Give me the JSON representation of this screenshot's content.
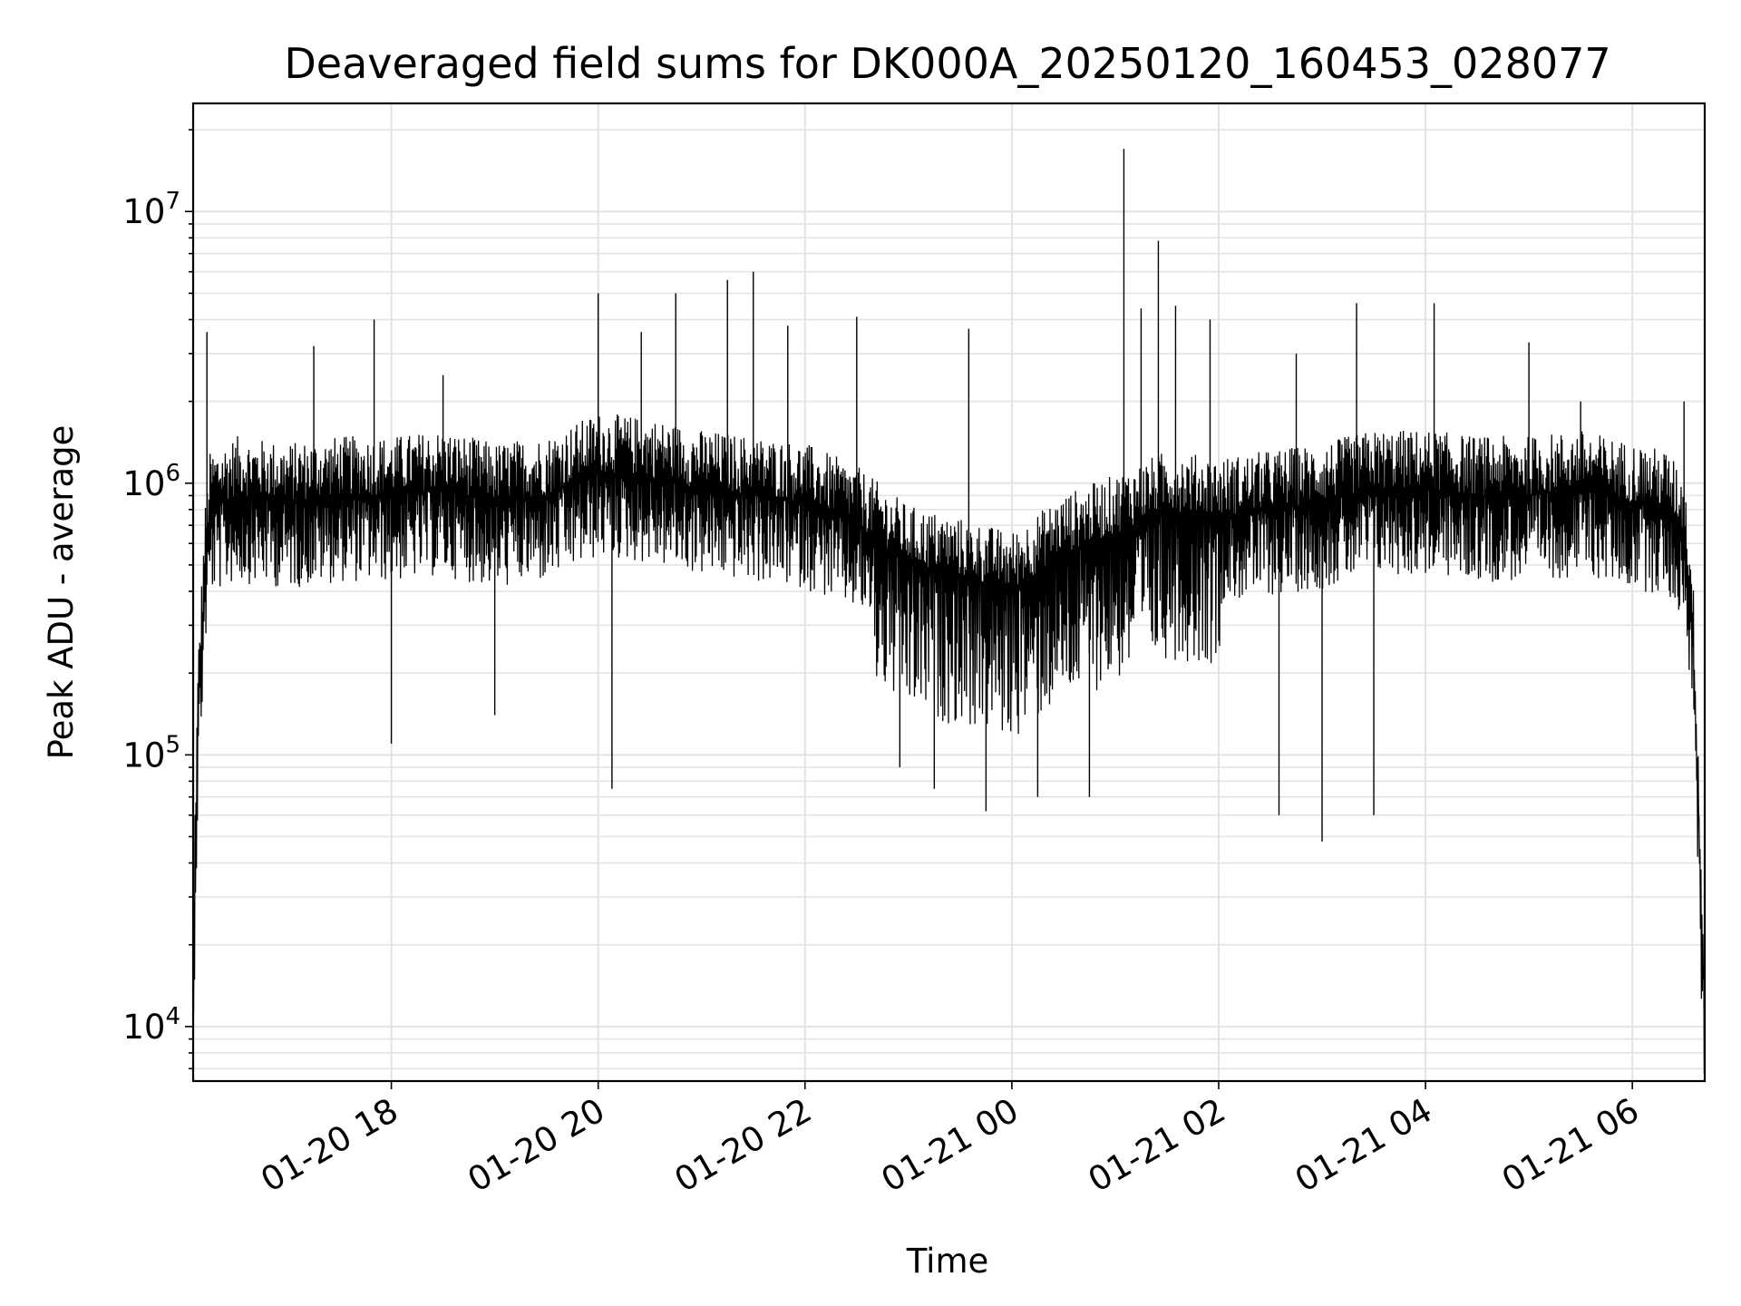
{
  "chart_data": {
    "type": "line",
    "title": "Deaveraged field sums for DK000A_20250120_160453_028077",
    "xlabel": "Time",
    "ylabel": "Peak ADU - average",
    "yscale": "log",
    "ylim": [
      6300,
      25000000
    ],
    "xlim": [
      "2025-01-20 16:05",
      "2025-01-21 06:42"
    ],
    "grid": true,
    "line_color": "#000000",
    "x_ticks": [
      {
        "label": "01-20 18",
        "value": "2025-01-20 18:00"
      },
      {
        "label": "01-20 20",
        "value": "2025-01-20 20:00"
      },
      {
        "label": "01-20 22",
        "value": "2025-01-20 22:00"
      },
      {
        "label": "01-21 00",
        "value": "2025-01-21 00:00"
      },
      {
        "label": "01-21 02",
        "value": "2025-01-21 02:00"
      },
      {
        "label": "01-21 04",
        "value": "2025-01-21 04:00"
      },
      {
        "label": "01-21 06",
        "value": "2025-01-21 06:00"
      }
    ],
    "y_ticks": [
      {
        "base": "10",
        "exp": "4",
        "value": 10000
      },
      {
        "base": "10",
        "exp": "5",
        "value": 100000
      },
      {
        "base": "10",
        "exp": "6",
        "value": 1000000
      },
      {
        "base": "10",
        "exp": "7",
        "value": 10000000
      }
    ],
    "series": [
      {
        "x": [
          "2025-01-20 16:05",
          "2025-01-20 16:06",
          "2025-01-20 16:08",
          "2025-01-20 16:12",
          "2025-01-20 16:15",
          "2025-01-20 16:30",
          "2025-01-20 17:00",
          "2025-01-20 17:30",
          "2025-01-20 18:00",
          "2025-01-20 18:30",
          "2025-01-20 19:00",
          "2025-01-20 19:30",
          "2025-01-20 20:00",
          "2025-01-20 20:30",
          "2025-01-20 21:00",
          "2025-01-20 21:30",
          "2025-01-20 22:00",
          "2025-01-20 22:30",
          "2025-01-20 23:00",
          "2025-01-20 23:30",
          "2025-01-21 00:00",
          "2025-01-21 00:30",
          "2025-01-21 01:00",
          "2025-01-21 01:30",
          "2025-01-21 02:00",
          "2025-01-21 02:30",
          "2025-01-21 03:00",
          "2025-01-21 03:30",
          "2025-01-21 04:00",
          "2025-01-21 04:30",
          "2025-01-21 05:00",
          "2025-01-21 05:30",
          "2025-01-21 06:00",
          "2025-01-21 06:20",
          "2025-01-21 06:30",
          "2025-01-21 06:35",
          "2025-01-21 06:38",
          "2025-01-21 06:40",
          "2025-01-21 06:42"
        ],
        "y": [
          9500,
          40000,
          150000,
          500000,
          800000,
          900000,
          850000,
          900000,
          900000,
          950000,
          850000,
          900000,
          1100000,
          1050000,
          950000,
          900000,
          850000,
          700000,
          500000,
          450000,
          400000,
          550000,
          650000,
          800000,
          750000,
          800000,
          850000,
          950000,
          950000,
          900000,
          900000,
          950000,
          850000,
          800000,
          650000,
          300000,
          80000,
          25000,
          11000
        ]
      }
    ],
    "spikes": [
      {
        "x": "2025-01-20 16:13",
        "y": 3600000
      },
      {
        "x": "2025-01-20 17:15",
        "y": 3200000
      },
      {
        "x": "2025-01-20 17:50",
        "y": 4000000
      },
      {
        "x": "2025-01-20 18:00",
        "y": 110000
      },
      {
        "x": "2025-01-20 18:30",
        "y": 2500000
      },
      {
        "x": "2025-01-20 19:00",
        "y": 140000
      },
      {
        "x": "2025-01-20 20:00",
        "y": 5000000
      },
      {
        "x": "2025-01-20 20:08",
        "y": 75000
      },
      {
        "x": "2025-01-20 20:25",
        "y": 3600000
      },
      {
        "x": "2025-01-20 20:45",
        "y": 5000000
      },
      {
        "x": "2025-01-20 21:15",
        "y": 5600000
      },
      {
        "x": "2025-01-20 21:30",
        "y": 6000000
      },
      {
        "x": "2025-01-20 21:50",
        "y": 3800000
      },
      {
        "x": "2025-01-20 22:30",
        "y": 4100000
      },
      {
        "x": "2025-01-20 22:55",
        "y": 90000
      },
      {
        "x": "2025-01-20 23:15",
        "y": 75000
      },
      {
        "x": "2025-01-20 23:35",
        "y": 3700000
      },
      {
        "x": "2025-01-20 23:45",
        "y": 62000
      },
      {
        "x": "2025-01-21 00:15",
        "y": 70000
      },
      {
        "x": "2025-01-21 00:45",
        "y": 70000
      },
      {
        "x": "2025-01-21 01:05",
        "y": 17000000
      },
      {
        "x": "2025-01-21 01:15",
        "y": 4400000
      },
      {
        "x": "2025-01-21 01:25",
        "y": 7800000
      },
      {
        "x": "2025-01-21 01:35",
        "y": 4500000
      },
      {
        "x": "2025-01-21 01:55",
        "y": 4000000
      },
      {
        "x": "2025-01-21 02:35",
        "y": 60000
      },
      {
        "x": "2025-01-21 02:45",
        "y": 3000000
      },
      {
        "x": "2025-01-21 03:00",
        "y": 48000
      },
      {
        "x": "2025-01-21 03:20",
        "y": 4600000
      },
      {
        "x": "2025-01-21 03:30",
        "y": 60000
      },
      {
        "x": "2025-01-21 04:05",
        "y": 4600000
      },
      {
        "x": "2025-01-21 05:00",
        "y": 3300000
      },
      {
        "x": "2025-01-21 05:30",
        "y": 2000000
      },
      {
        "x": "2025-01-21 06:30",
        "y": 2000000
      }
    ]
  }
}
